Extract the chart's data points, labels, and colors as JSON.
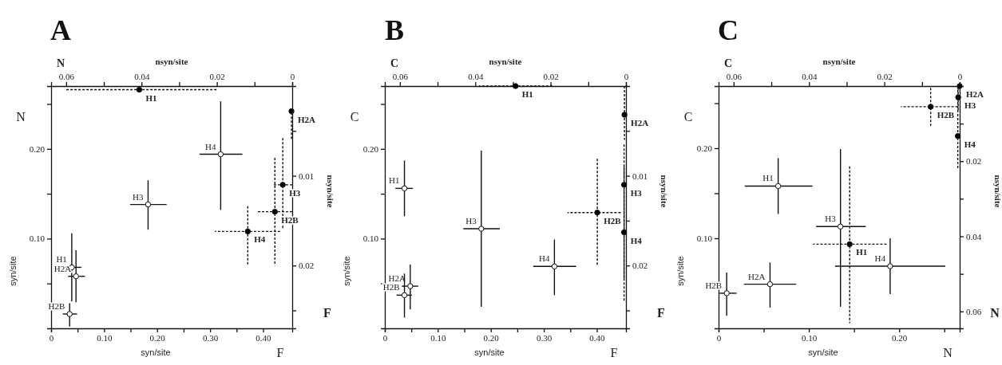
{
  "chart_data": [
    {
      "type": "scatter",
      "title": "A",
      "xlabel": "syn/site",
      "ylabel": "syn/site",
      "marker": "circle",
      "annotations": [
        "N",
        "F"
      ],
      "xlim": [
        0,
        0.455
      ],
      "xticks": [
        0,
        {
          "value": 0.05,
          "label": null
        },
        {
          "value": 0.1,
          "label": "0.10"
        },
        {
          "value": 0.15,
          "label": null
        },
        {
          "value": 0.2,
          "label": "0.20"
        },
        {
          "value": 0.25,
          "label": null
        },
        {
          "value": 0.3,
          "label": "0.30"
        },
        {
          "value": 0.35,
          "label": null
        },
        {
          "value": 0.4,
          "label": "0.40"
        }
      ],
      "ylim": [
        0,
        0.27
      ],
      "yticks": [
        {
          "value": 0.05,
          "label": null
        },
        {
          "value": 0.1,
          "label": "0.10"
        },
        {
          "value": 0.15,
          "label": null
        },
        {
          "value": 0.2,
          "label": "0.20"
        },
        {
          "value": 0.25,
          "label": null
        }
      ],
      "series": [
        {
          "name": "H1",
          "color": "#ffffff",
          "x": [
            0.039
          ],
          "values": [
            0.068
          ],
          "xerrors": [
            [
              0.024,
              0.057
            ]
          ],
          "errors": [
            [
              0.03,
              0.106
            ]
          ]
        },
        {
          "name": "H2A",
          "color": "#ffffff",
          "x": [
            0.047
          ],
          "values": [
            0.058
          ],
          "xerrors": [
            [
              0.032,
              0.064
            ]
          ],
          "errors": [
            [
              0.029,
              0.087
            ]
          ]
        },
        {
          "name": "H2B",
          "color": "#ffffff",
          "x": [
            0.035
          ],
          "values": [
            0.016
          ],
          "xerrors": [
            [
              0.022,
              0.049
            ]
          ],
          "errors": [
            [
              0.002,
              0.028
            ]
          ]
        },
        {
          "name": "H3",
          "color": "#ffffff",
          "x": [
            0.183
          ],
          "values": [
            0.138
          ],
          "xerrors": [
            [
              0.149,
              0.218
            ]
          ],
          "errors": [
            [
              0.11,
              0.165
            ]
          ]
        },
        {
          "name": "H4",
          "color": "#ffffff",
          "x": [
            0.32
          ],
          "values": [
            0.194
          ],
          "xerrors": [
            [
              0.28,
              0.361
            ]
          ],
          "errors": [
            [
              0.132,
              0.253
            ]
          ]
        }
      ]
    },
    {
      "type": "scatter",
      "xlabel": "nsyn/site",
      "ylabel": "nsyn/site",
      "marker": "circle",
      "line_style": "dashed",
      "annotations": [
        "N",
        "F"
      ],
      "xlim": [
        0.064,
        0
      ],
      "xticks": [
        0.06,
        {
          "value": 0.05,
          "label": null
        },
        0.04,
        {
          "value": 0.03,
          "label": null
        },
        0.02,
        {
          "value": 0.01,
          "label": null
        },
        0
      ],
      "ylim": [
        0.027,
        0
      ],
      "yticks": [
        {
          "value": 0.005,
          "label": null
        },
        0.01,
        {
          "value": 0.015,
          "label": null
        },
        0.02,
        {
          "value": 0.025,
          "label": null
        }
      ],
      "series": [
        {
          "name": "H1",
          "color": "#000000",
          "x": [
            0.0406
          ],
          "values": [
            0.0004
          ],
          "xerrors": [
            [
              0.0201,
              0.0604
            ]
          ],
          "errors": [
            null
          ]
        },
        {
          "name": "H2A",
          "color": "#000000",
          "x": [
            0.0002
          ],
          "values": [
            0.0028
          ],
          "xerrors": [
            null
          ],
          "errors": [
            [
              0.0025,
              0.006
            ]
          ]
        },
        {
          "name": "H3",
          "color": "#000000",
          "x": [
            0.0025
          ],
          "values": [
            0.011
          ],
          "xerrors": [
            [
              0,
              0.0053
            ]
          ],
          "errors": [
            [
              0.0058,
              0.0159
            ]
          ]
        },
        {
          "name": "H2B",
          "color": "#000000",
          "x": [
            0.0046
          ],
          "values": [
            0.014
          ],
          "xerrors": [
            [
              0,
              0.0092
            ]
          ],
          "errors": [
            [
              0.008,
              0.02
            ]
          ]
        },
        {
          "name": "H4",
          "color": "#000000",
          "x": [
            0.0118
          ],
          "values": [
            0.0162
          ],
          "xerrors": [
            [
              0.0032,
              0.0205
            ]
          ],
          "errors": [
            [
              0.0134,
              0.0199
            ]
          ]
        }
      ]
    },
    {
      "type": "scatter",
      "title": "B",
      "xlabel": "syn/site",
      "ylabel": "syn/site",
      "marker": "circle",
      "annotations": [
        "C",
        "F"
      ],
      "xlim": [
        0,
        0.455
      ],
      "xticks": [
        0,
        {
          "value": 0.05,
          "label": null
        },
        {
          "value": 0.1,
          "label": "0.10"
        },
        {
          "value": 0.15,
          "label": null
        },
        {
          "value": 0.2,
          "label": "0.20"
        },
        {
          "value": 0.25,
          "label": null
        },
        {
          "value": 0.3,
          "label": "0.30"
        },
        {
          "value": 0.35,
          "label": null
        },
        {
          "value": 0.4,
          "label": "0.40"
        }
      ],
      "ylim": [
        0,
        0.27
      ],
      "yticks": [
        {
          "value": 0.05,
          "label": null
        },
        {
          "value": 0.1,
          "label": "0.10"
        },
        {
          "value": 0.15,
          "label": null
        },
        {
          "value": 0.2,
          "label": "0.20"
        },
        {
          "value": 0.25,
          "label": null
        }
      ],
      "series": [
        {
          "name": "H1",
          "color": "#ffffff",
          "x": [
            0.037
          ],
          "values": [
            0.156
          ],
          "xerrors": [
            [
              0.02,
              0.053
            ]
          ],
          "errors": [
            [
              0.125,
              0.187
            ]
          ]
        },
        {
          "name": "H2A",
          "color": "#ffffff",
          "x": [
            0.048
          ],
          "values": [
            0.047
          ],
          "xerrors": [
            [
              0.032,
              0.063
            ]
          ],
          "errors": [
            [
              0.021,
              0.071
            ]
          ]
        },
        {
          "name": "H2B",
          "color": "#ffffff",
          "x": [
            0.037
          ],
          "values": [
            0.037
          ],
          "xerrors": [
            [
              0.022,
              0.051
            ]
          ],
          "errors": [
            [
              0.012,
              0.061
            ]
          ]
        },
        {
          "name": "H3",
          "color": "#ffffff",
          "x": [
            0.182
          ],
          "values": [
            0.111
          ],
          "xerrors": [
            [
              0.148,
              0.217
            ]
          ],
          "errors": [
            [
              0.024,
              0.198
            ]
          ]
        },
        {
          "name": "H4",
          "color": "#ffffff",
          "x": [
            0.32
          ],
          "values": [
            0.069
          ],
          "xerrors": [
            [
              0.28,
              0.361
            ]
          ],
          "errors": [
            [
              0.037,
              0.099
            ]
          ]
        }
      ]
    },
    {
      "type": "scatter",
      "xlabel": "nsyn/site",
      "ylabel": "nsyn/site",
      "marker": "circle",
      "line_style": "dashed",
      "annotations": [
        "C",
        "F"
      ],
      "xlim": [
        0.064,
        0
      ],
      "xticks": [
        0.06,
        {
          "value": 0.05,
          "label": null
        },
        0.04,
        {
          "value": 0.03,
          "label": null
        },
        0.02,
        {
          "value": 0.01,
          "label": null
        },
        0
      ],
      "ylim": [
        0.027,
        0
      ],
      "yticks": [
        {
          "value": 0.005,
          "label": null
        },
        0.01,
        {
          "value": 0.015,
          "label": null
        },
        0.02,
        {
          "value": 0.025,
          "label": null
        }
      ],
      "series": [
        {
          "name": "H1",
          "color": "#000000",
          "x": [
            0.0293
          ],
          "values": [
            0
          ],
          "xerrors": [
            [
              0.0195,
              0.039
            ]
          ],
          "errors": [
            null
          ]
        },
        {
          "name": "H2A",
          "color": "#000000",
          "x": [
            0.0004
          ],
          "values": [
            0.0032
          ],
          "xerrors": [
            null
          ],
          "errors": [
            [
              0,
              0.006
            ]
          ]
        },
        {
          "name": "H3",
          "color": "#000000",
          "x": [
            0.0005
          ],
          "values": [
            0.011
          ],
          "xerrors": [
            null
          ],
          "errors": [
            [
              0.0065,
              0.0215
            ]
          ]
        },
        {
          "name": "H2B",
          "color": "#000000",
          "x": [
            0.0076
          ],
          "values": [
            0.0141
          ],
          "xerrors": [
            [
              0.0014,
              0.0155
            ]
          ],
          "errors": [
            [
              0.0081,
              0.0201
            ]
          ]
        },
        {
          "name": "H4",
          "color": "#000000",
          "x": [
            0.0005
          ],
          "values": [
            0.0163
          ],
          "xerrors": [
            null
          ],
          "errors": [
            [
              0.009,
              0.024
            ]
          ]
        }
      ]
    },
    {
      "type": "scatter",
      "title": "C",
      "xlabel": "syn/site",
      "ylabel": "syn/site",
      "marker": "circle",
      "annotations": [
        "C",
        "N"
      ],
      "xlim": [
        0,
        0.267
      ],
      "xticks": [
        0,
        {
          "value": 0.05,
          "label": null
        },
        {
          "value": 0.1,
          "label": "0.10"
        },
        {
          "value": 0.15,
          "label": null
        },
        {
          "value": 0.2,
          "label": "0.20"
        },
        {
          "value": 0.25,
          "label": null
        }
      ],
      "ylim": [
        0,
        0.269
      ],
      "yticks": [
        {
          "value": 0.05,
          "label": null
        },
        {
          "value": 0.1,
          "label": "0.10"
        },
        {
          "value": 0.15,
          "label": null
        },
        {
          "value": 0.2,
          "label": "0.20"
        },
        {
          "value": 0.25,
          "label": null
        }
      ],
      "series": [
        {
          "name": "H1",
          "color": "#ffffff",
          "x": [
            0.066
          ],
          "values": [
            0.158
          ],
          "xerrors": [
            [
              0.029,
              0.104
            ]
          ],
          "errors": [
            [
              0.127,
              0.189
            ]
          ]
        },
        {
          "name": "H2A",
          "color": "#ffffff",
          "x": [
            0.057
          ],
          "values": [
            0.049
          ],
          "xerrors": [
            [
              0.028,
              0.086
            ]
          ],
          "errors": [
            [
              0.023,
              0.073
            ]
          ]
        },
        {
          "name": "H2B",
          "color": "#ffffff",
          "x": [
            0.009
          ],
          "values": [
            0.039
          ],
          "xerrors": [
            [
              0.001,
              0.02
            ]
          ],
          "errors": [
            [
              0.014,
              0.062
            ]
          ]
        },
        {
          "name": "H3",
          "color": "#ffffff",
          "x": [
            0.135
          ],
          "values": [
            0.113
          ],
          "xerrors": [
            [
              0.108,
              0.163
            ]
          ],
          "errors": [
            [
              0.024,
              0.199
            ]
          ]
        },
        {
          "name": "H4",
          "color": "#ffffff",
          "x": [
            0.19
          ],
          "values": [
            0.069
          ],
          "xerrors": [
            [
              0.129,
              0.251
            ]
          ],
          "errors": [
            [
              0.038,
              0.1
            ]
          ]
        }
      ]
    },
    {
      "type": "scatter",
      "xlabel": "nsyn/site",
      "ylabel": "nsyn/site",
      "marker": "circle",
      "line_style": "dashed",
      "annotations": [
        "C",
        "N"
      ],
      "xlim": [
        0.064,
        0
      ],
      "xticks": [
        0.06,
        {
          "value": 0.05,
          "label": null
        },
        0.04,
        {
          "value": 0.03,
          "label": null
        },
        0.02,
        {
          "value": 0.01,
          "label": null
        },
        0
      ],
      "ylim": [
        0.0645,
        0
      ],
      "yticks": [
        {
          "value": 0.01,
          "label": null
        },
        0.02,
        {
          "value": 0.03,
          "label": null
        },
        0.04,
        {
          "value": 0.05,
          "label": null
        },
        0.06
      ],
      "series": [
        {
          "name": "H1",
          "color": "#000000",
          "x": [
            0.0292
          ],
          "values": [
            0.0421
          ],
          "xerrors": [
            [
              0.0194,
              0.0389
            ]
          ],
          "errors": [
            [
              0.0214,
              0.0631
            ]
          ]
        },
        {
          "name": "H2A",
          "color": "#000000",
          "x": [
            0
          ],
          "values": [
            0
          ],
          "xerrors": [
            null
          ],
          "errors": [
            null
          ]
        },
        {
          "name": "H3",
          "color": "#000000",
          "x": [
            0.0004
          ],
          "values": [
            0.003
          ],
          "xerrors": [
            null
          ],
          "errors": [
            [
              0.0005,
              0.0065
            ]
          ]
        },
        {
          "name": "H2B",
          "color": "#000000",
          "x": [
            0.0077
          ],
          "values": [
            0.0055
          ],
          "xerrors": [
            [
              0.0005,
              0.0156
            ]
          ],
          "errors": [
            [
              0.0005,
              0.0106
            ]
          ]
        },
        {
          "name": "H4",
          "color": "#000000",
          "x": [
            0.0005
          ],
          "values": [
            0.0133
          ],
          "xerrors": [
            null
          ],
          "errors": [
            [
              0,
              0.0221
            ]
          ]
        }
      ]
    }
  ]
}
